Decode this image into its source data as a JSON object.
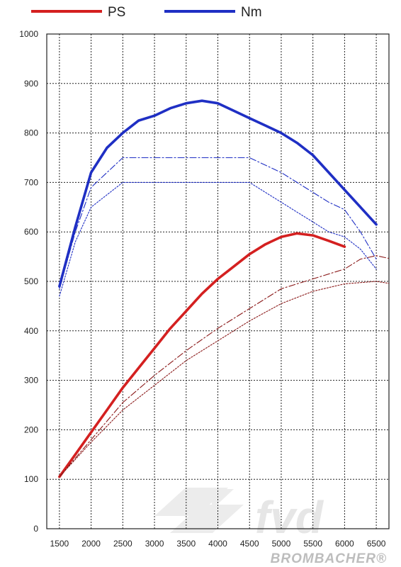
{
  "chart_data": {
    "type": "line",
    "title": "",
    "xlabel": "",
    "ylabel": "",
    "x": [
      1500,
      2000,
      2500,
      3000,
      3500,
      4000,
      4500,
      5000,
      5500,
      6000,
      6500
    ],
    "xlim": [
      1300,
      6700
    ],
    "ylim": [
      0,
      1000
    ],
    "xticks": [
      "1500",
      "2000",
      "2500",
      "3000",
      "3500",
      "4000",
      "4500",
      "5000",
      "5500",
      "6000",
      "6500"
    ],
    "yticks": [
      "0",
      "100",
      "200",
      "300",
      "400",
      "500",
      "600",
      "700",
      "800",
      "900",
      "1000"
    ],
    "grid": true,
    "legend_position": "top",
    "legend": [
      {
        "name": "PS",
        "color": "#d42020"
      },
      {
        "name": "Nm",
        "color": "#1f2fc4"
      }
    ],
    "series": [
      {
        "name": "Nm",
        "role": "main",
        "color": "#1f2fc4",
        "points": [
          [
            1500,
            490
          ],
          [
            1750,
            610
          ],
          [
            2000,
            720
          ],
          [
            2250,
            770
          ],
          [
            2500,
            800
          ],
          [
            2750,
            825
          ],
          [
            3000,
            835
          ],
          [
            3250,
            850
          ],
          [
            3500,
            860
          ],
          [
            3750,
            865
          ],
          [
            4000,
            860
          ],
          [
            4250,
            845
          ],
          [
            4500,
            830
          ],
          [
            4750,
            815
          ],
          [
            5000,
            800
          ],
          [
            5250,
            780
          ],
          [
            5500,
            755
          ],
          [
            5750,
            720
          ],
          [
            6000,
            685
          ],
          [
            6250,
            650
          ],
          [
            6500,
            615
          ]
        ]
      },
      {
        "role": "comparison",
        "color": "#1f2fc4",
        "points": [
          [
            1500,
            485
          ],
          [
            1750,
            600
          ],
          [
            2000,
            690
          ],
          [
            2250,
            720
          ],
          [
            2500,
            750
          ],
          [
            2750,
            750
          ],
          [
            3000,
            750
          ],
          [
            3500,
            750
          ],
          [
            4000,
            750
          ],
          [
            4500,
            750
          ],
          [
            4750,
            735
          ],
          [
            5000,
            720
          ],
          [
            5250,
            700
          ],
          [
            5500,
            680
          ],
          [
            5750,
            660
          ],
          [
            6000,
            645
          ],
          [
            6250,
            600
          ],
          [
            6500,
            545
          ]
        ]
      },
      {
        "role": "comparison",
        "color": "#1f2fc4",
        "points": [
          [
            1500,
            470
          ],
          [
            1750,
            580
          ],
          [
            2000,
            650
          ],
          [
            2250,
            675
          ],
          [
            2500,
            700
          ],
          [
            2750,
            700
          ],
          [
            3000,
            700
          ],
          [
            3500,
            700
          ],
          [
            4000,
            700
          ],
          [
            4500,
            700
          ],
          [
            4750,
            680
          ],
          [
            5000,
            660
          ],
          [
            5250,
            640
          ],
          [
            5500,
            620
          ],
          [
            5750,
            600
          ],
          [
            6000,
            590
          ],
          [
            6250,
            565
          ],
          [
            6500,
            525
          ]
        ]
      },
      {
        "name": "PS",
        "role": "main",
        "color": "#d42020",
        "points": [
          [
            1500,
            105
          ],
          [
            1750,
            150
          ],
          [
            2000,
            195
          ],
          [
            2250,
            240
          ],
          [
            2500,
            285
          ],
          [
            2750,
            325
          ],
          [
            3000,
            365
          ],
          [
            3250,
            405
          ],
          [
            3500,
            440
          ],
          [
            3750,
            475
          ],
          [
            4000,
            505
          ],
          [
            4250,
            530
          ],
          [
            4500,
            555
          ],
          [
            4750,
            575
          ],
          [
            5000,
            590
          ],
          [
            5250,
            597
          ],
          [
            5500,
            593
          ],
          [
            5750,
            582
          ],
          [
            6000,
            570
          ]
        ]
      },
      {
        "role": "comparison",
        "color": "#8b1a1a",
        "points": [
          [
            1500,
            105
          ],
          [
            2000,
            180
          ],
          [
            2500,
            255
          ],
          [
            3000,
            310
          ],
          [
            3500,
            360
          ],
          [
            4000,
            405
          ],
          [
            4500,
            445
          ],
          [
            5000,
            485
          ],
          [
            5500,
            505
          ],
          [
            6000,
            525
          ],
          [
            6250,
            545
          ],
          [
            6500,
            552
          ],
          [
            6750,
            545
          ],
          [
            7000,
            530
          ]
        ]
      },
      {
        "role": "comparison",
        "color": "#8b1a1a",
        "points": [
          [
            1500,
            105
          ],
          [
            2000,
            175
          ],
          [
            2500,
            240
          ],
          [
            3000,
            290
          ],
          [
            3500,
            340
          ],
          [
            4000,
            380
          ],
          [
            4500,
            420
          ],
          [
            5000,
            455
          ],
          [
            5500,
            480
          ],
          [
            6000,
            495
          ],
          [
            6500,
            500
          ],
          [
            6750,
            495
          ],
          [
            7000,
            490
          ]
        ]
      }
    ]
  },
  "footer": {
    "logo": "fvd",
    "brand": "BROMBACHER®"
  }
}
